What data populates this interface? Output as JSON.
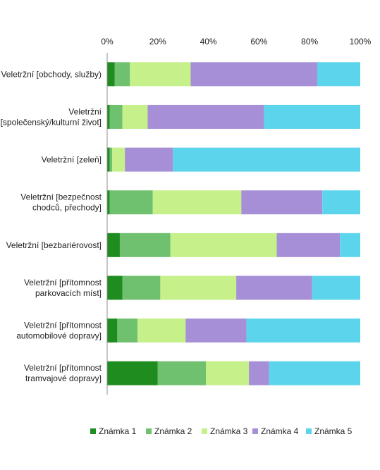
{
  "chart_data": {
    "type": "bar",
    "orientation": "horizontal",
    "stacked": "percent",
    "xlim": [
      0,
      100
    ],
    "x_ticks": [
      "0%",
      "20%",
      "40%",
      "60%",
      "80%",
      "100%"
    ],
    "x_axis_position": "top",
    "grid": false,
    "legend_position": "bottom",
    "categories": [
      [
        "Veletržní [obchody, služby)"
      ],
      [
        "Veletržní",
        "[společenský/kulturní život]"
      ],
      [
        "Veletržní [zeleň]"
      ],
      [
        "Veletržní [bezpečnost",
        "chodců, přechody]"
      ],
      [
        "Veletržní [bezbariérovost]"
      ],
      [
        "Veletržní [přítomnost",
        "parkovacích míst]"
      ],
      [
        "Veletržní [přítomnost",
        "automobilové dopravy]"
      ],
      [
        "Veletržní [přítomnost",
        "tramvajové dopravy]"
      ]
    ],
    "series": [
      {
        "name": "Známka 1",
        "color": "#1e8c1e",
        "values": [
          3,
          1,
          1,
          1,
          5,
          6,
          4,
          20
        ]
      },
      {
        "name": "Známka 2",
        "color": "#6fc06f",
        "values": [
          6,
          5,
          1,
          17,
          20,
          15,
          8,
          19
        ]
      },
      {
        "name": "Známka 3",
        "color": "#c6f08a",
        "values": [
          24,
          10,
          5,
          35,
          42,
          30,
          19,
          17
        ]
      },
      {
        "name": "Známka 4",
        "color": "#a68fd6",
        "values": [
          50,
          46,
          19,
          32,
          25,
          30,
          24,
          8
        ]
      },
      {
        "name": "Známka 5",
        "color": "#5cd4ec",
        "values": [
          17,
          38,
          74,
          15,
          8,
          19,
          45,
          36
        ]
      }
    ]
  }
}
